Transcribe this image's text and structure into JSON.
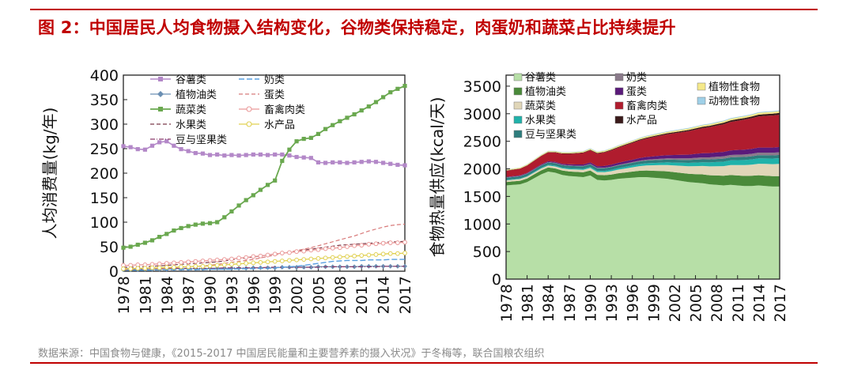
{
  "header": {
    "title": "图 2：中国居民人均食物摄入结构变化，谷物类保持稳定，肉蛋奶和蔬菜占比持续提升"
  },
  "footer": {
    "source": "数据来源：中国食物与健康，《2015-2017 中国居民能量和主要营养素的摄入状况》于冬梅等，联合国粮农组织"
  },
  "colors": {
    "title_red": "#c00000",
    "grain": "#b388c8",
    "veg_oil": "#6b8fb3",
    "vegetables": "#6aa84f",
    "fruit": "#7a3b4a",
    "legumes": "#8a3a6a",
    "dairy": "#5aa0e0",
    "eggs": "#d87a7a",
    "meat": "#ea9999",
    "aquatic": "#e0d050",
    "area_grain": "#b7dfa7",
    "area_vegoil": "#4a8a3a",
    "area_veg": "#e0d6b8",
    "area_fruit": "#20b2aa",
    "area_legume": "#2e7d7d",
    "area_dairy": "#8a7a8a",
    "area_egg": "#5a1a7a",
    "area_meat": "#b01c2e",
    "area_aquatic": "#3a1a1a",
    "area_plantother": "#f5e98a",
    "area_animalother": "#9fd0e8"
  },
  "chart_data": [
    {
      "type": "line",
      "ylabel": "人均消费量(kg/年)",
      "ylim": [
        0,
        400
      ],
      "yticks": [
        "0",
        "50",
        "100",
        "150",
        "200",
        "250",
        "300",
        "350",
        "400"
      ],
      "x": [
        1978,
        1979,
        1980,
        1981,
        1982,
        1983,
        1984,
        1985,
        1986,
        1987,
        1988,
        1989,
        1990,
        1991,
        1992,
        1993,
        1994,
        1995,
        1996,
        1997,
        1998,
        1999,
        2000,
        2001,
        2002,
        2003,
        2004,
        2005,
        2006,
        2007,
        2008,
        2009,
        2010,
        2011,
        2012,
        2013,
        2014,
        2015,
        2016,
        2017
      ],
      "xticks": [
        "1978",
        "1981",
        "1984",
        "1987",
        "1990",
        "1993",
        "1996",
        "1999",
        "2002",
        "2005",
        "2008",
        "2011",
        "2014",
        "2017"
      ],
      "legend_position": "top-left",
      "series": [
        {
          "name": "谷薯类",
          "style": "square-marker",
          "values": [
            255,
            253,
            249,
            248,
            256,
            263,
            265,
            256,
            249,
            245,
            241,
            240,
            237,
            238,
            236,
            237,
            236,
            237,
            238,
            238,
            237,
            238,
            238,
            236,
            233,
            232,
            231,
            222,
            221,
            222,
            222,
            221,
            222,
            223,
            224,
            223,
            221,
            219,
            217,
            216
          ]
        },
        {
          "name": "植物油类",
          "style": "diamond-marker",
          "values": [
            3,
            3,
            3,
            4,
            4,
            4,
            4,
            5,
            5,
            5,
            5,
            5,
            6,
            6,
            6,
            6,
            6,
            6,
            7,
            7,
            7,
            7,
            8,
            8,
            8,
            8,
            8,
            9,
            9,
            9,
            9,
            9,
            9,
            10,
            10,
            10,
            10,
            10,
            10,
            10
          ]
        },
        {
          "name": "蔬菜类",
          "style": "square-marker",
          "values": [
            48,
            50,
            54,
            58,
            63,
            70,
            76,
            83,
            88,
            92,
            95,
            97,
            98,
            100,
            110,
            122,
            134,
            145,
            155,
            166,
            176,
            185,
            225,
            248,
            265,
            270,
            272,
            280,
            290,
            298,
            306,
            313,
            320,
            328,
            336,
            345,
            355,
            365,
            372,
            378
          ]
        },
        {
          "name": "水果类",
          "style": "dashed",
          "values": [
            8,
            8,
            9,
            9,
            10,
            11,
            12,
            13,
            14,
            15,
            16,
            17,
            18,
            19,
            21,
            23,
            25,
            27,
            29,
            31,
            33,
            35,
            37,
            39,
            41,
            43,
            45,
            47,
            49,
            51,
            53,
            54,
            55,
            56,
            57,
            58,
            59,
            60,
            60,
            61
          ]
        },
        {
          "name": "豆与坚果类",
          "style": "dash-dot",
          "values": [
            5,
            5,
            5,
            5,
            5,
            5,
            6,
            6,
            6,
            6,
            6,
            6,
            6,
            6,
            7,
            7,
            7,
            7,
            7,
            7,
            8,
            8,
            8,
            8,
            8,
            8,
            8,
            8,
            9,
            9,
            9,
            9,
            9,
            9,
            9,
            9,
            10,
            10,
            10,
            10
          ]
        },
        {
          "name": "奶类",
          "style": "dashed",
          "values": [
            2,
            2,
            2,
            2,
            2,
            3,
            3,
            3,
            3,
            3,
            3,
            3,
            4,
            4,
            4,
            4,
            5,
            5,
            5,
            6,
            6,
            7,
            8,
            9,
            10,
            12,
            14,
            16,
            18,
            20,
            21,
            22,
            22,
            22,
            23,
            23,
            23,
            24,
            24,
            24
          ]
        },
        {
          "name": "蛋类",
          "style": "dashed",
          "values": [
            3,
            3,
            4,
            4,
            5,
            5,
            6,
            7,
            8,
            9,
            10,
            11,
            12,
            14,
            16,
            18,
            20,
            22,
            24,
            27,
            30,
            33,
            36,
            39,
            42,
            45,
            48,
            52,
            56,
            60,
            64,
            68,
            72,
            77,
            82,
            86,
            90,
            93,
            95,
            96
          ]
        },
        {
          "name": "畜禽肉类",
          "style": "circle-marker",
          "values": [
            12,
            12,
            13,
            13,
            14,
            15,
            16,
            17,
            18,
            19,
            20,
            21,
            22,
            23,
            24,
            25,
            27,
            28,
            30,
            31,
            33,
            35,
            37,
            38,
            40,
            41,
            43,
            44,
            46,
            47,
            48,
            50,
            52,
            53,
            55,
            56,
            57,
            58,
            58,
            59
          ]
        },
        {
          "name": "水产品",
          "style": "circle-marker",
          "values": [
            5,
            5,
            6,
            6,
            7,
            7,
            8,
            8,
            9,
            9,
            10,
            10,
            11,
            12,
            13,
            14,
            15,
            16,
            17,
            18,
            19,
            20,
            21,
            22,
            23,
            24,
            25,
            26,
            27,
            28,
            29,
            30,
            31,
            32,
            33,
            34,
            35,
            36,
            36,
            37
          ]
        }
      ]
    },
    {
      "type": "area",
      "stacked": true,
      "ylabel": "食物热量供应(kcal/天)",
      "ylim": [
        0,
        3700
      ],
      "yticks": [
        "0",
        "500",
        "1000",
        "1500",
        "2000",
        "2500",
        "3000",
        "3500"
      ],
      "x": [
        1978,
        1979,
        1980,
        1981,
        1982,
        1983,
        1984,
        1985,
        1986,
        1987,
        1988,
        1989,
        1990,
        1991,
        1992,
        1993,
        1994,
        1995,
        1996,
        1997,
        1998,
        1999,
        2000,
        2001,
        2002,
        2003,
        2004,
        2005,
        2006,
        2007,
        2008,
        2009,
        2010,
        2011,
        2012,
        2013,
        2014,
        2015,
        2016,
        2017
      ],
      "xticks": [
        "1978",
        "1981",
        "1984",
        "1987",
        "1990",
        "1993",
        "1996",
        "1999",
        "2002",
        "2005",
        "2008",
        "2011",
        "2014",
        "2017"
      ],
      "legend_position": "top",
      "series": [
        {
          "name": "谷薯类",
          "values": [
            1700,
            1710,
            1720,
            1760,
            1830,
            1900,
            1950,
            1930,
            1890,
            1870,
            1860,
            1850,
            1880,
            1800,
            1790,
            1800,
            1820,
            1830,
            1840,
            1850,
            1850,
            1840,
            1830,
            1820,
            1800,
            1780,
            1760,
            1750,
            1740,
            1720,
            1710,
            1700,
            1710,
            1700,
            1690,
            1690,
            1700,
            1690,
            1680,
            1680
          ]
        },
        {
          "name": "植物油类",
          "values": [
            60,
            62,
            64,
            66,
            70,
            72,
            75,
            78,
            80,
            82,
            85,
            88,
            90,
            92,
            95,
            98,
            100,
            105,
            110,
            115,
            120,
            125,
            130,
            135,
            140,
            145,
            150,
            155,
            160,
            165,
            170,
            175,
            178,
            180,
            182,
            184,
            185,
            186,
            187,
            188
          ]
        },
        {
          "name": "蔬菜类",
          "values": [
            30,
            30,
            31,
            32,
            33,
            34,
            35,
            36,
            38,
            40,
            42,
            44,
            46,
            50,
            55,
            60,
            66,
            72,
            78,
            85,
            92,
            100,
            108,
            115,
            122,
            130,
            138,
            145,
            152,
            160,
            168,
            175,
            182,
            190,
            196,
            202,
            208,
            213,
            218,
            222
          ]
        },
        {
          "name": "水果类",
          "values": [
            10,
            10,
            11,
            11,
            12,
            13,
            14,
            15,
            16,
            17,
            18,
            19,
            20,
            22,
            24,
            26,
            28,
            30,
            33,
            36,
            39,
            42,
            45,
            48,
            52,
            56,
            60,
            64,
            68,
            72,
            76,
            80,
            84,
            88,
            92,
            95,
            98,
            100,
            102,
            104
          ]
        },
        {
          "name": "豆与坚果类",
          "values": [
            40,
            40,
            40,
            41,
            41,
            42,
            42,
            43,
            43,
            44,
            44,
            45,
            45,
            46,
            46,
            47,
            47,
            48,
            48,
            49,
            49,
            50,
            50,
            51,
            51,
            52,
            52,
            53,
            53,
            54,
            54,
            55,
            55,
            56,
            56,
            57,
            57,
            58,
            58,
            59
          ]
        },
        {
          "name": "奶类",
          "values": [
            5,
            5,
            5,
            6,
            6,
            6,
            7,
            7,
            7,
            8,
            8,
            8,
            9,
            9,
            10,
            10,
            11,
            12,
            13,
            14,
            15,
            17,
            19,
            21,
            24,
            27,
            30,
            33,
            36,
            38,
            40,
            41,
            42,
            43,
            44,
            45,
            46,
            47,
            48,
            48
          ]
        },
        {
          "name": "蛋类",
          "values": [
            10,
            10,
            11,
            12,
            13,
            14,
            15,
            17,
            19,
            21,
            23,
            25,
            27,
            29,
            32,
            35,
            38,
            41,
            44,
            47,
            50,
            53,
            56,
            59,
            62,
            65,
            68,
            71,
            74,
            77,
            80,
            82,
            84,
            86,
            88,
            90,
            92,
            93,
            94,
            95
          ]
        },
        {
          "name": "畜禽肉类",
          "values": [
            110,
            115,
            120,
            130,
            140,
            150,
            160,
            170,
            180,
            190,
            200,
            210,
            220,
            230,
            245,
            260,
            275,
            290,
            305,
            320,
            335,
            350,
            365,
            380,
            395,
            410,
            425,
            440,
            455,
            470,
            485,
            500,
            515,
            530,
            545,
            555,
            565,
            575,
            580,
            585
          ]
        },
        {
          "name": "水产品",
          "values": [
            5,
            5,
            5,
            6,
            6,
            6,
            7,
            7,
            7,
            8,
            8,
            9,
            9,
            10,
            10,
            11,
            12,
            13,
            14,
            15,
            16,
            17,
            18,
            19,
            20,
            21,
            22,
            23,
            24,
            25,
            26,
            27,
            28,
            29,
            30,
            31,
            32,
            33,
            34,
            35
          ]
        },
        {
          "name": "植物性食物",
          "values": [
            15,
            15,
            15,
            16,
            16,
            16,
            17,
            17,
            17,
            18,
            18,
            18,
            19,
            19,
            20,
            20,
            21,
            21,
            22,
            22,
            23,
            23,
            24,
            24,
            25,
            25,
            26,
            26,
            27,
            27,
            28,
            28,
            29,
            29,
            30,
            30,
            31,
            31,
            32,
            32
          ]
        },
        {
          "name": "动物性食物",
          "values": [
            5,
            5,
            5,
            5,
            6,
            6,
            6,
            6,
            7,
            7,
            7,
            7,
            8,
            8,
            8,
            8,
            9,
            9,
            9,
            9,
            10,
            10,
            10,
            10,
            11,
            11,
            11,
            11,
            12,
            12,
            12,
            12,
            13,
            13,
            13,
            13,
            14,
            14,
            14,
            14
          ]
        }
      ]
    }
  ]
}
